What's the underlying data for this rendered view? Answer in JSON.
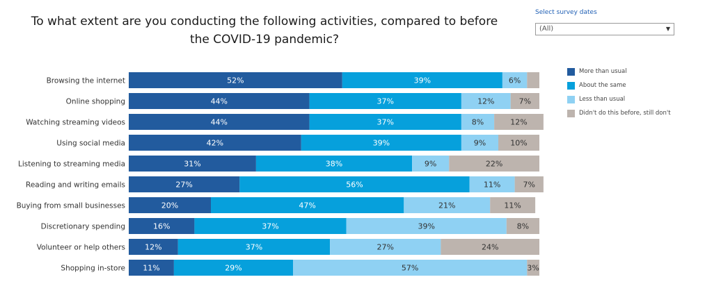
{
  "chart_data": {
    "type": "bar",
    "orientation": "horizontal",
    "stacked": true,
    "title": "To what extent are you conducting the following activities, compared to before the COVID-19 pandemic?",
    "xlim": [
      0,
      100
    ],
    "grid": false,
    "legend_position": "top-right",
    "categories": [
      "Browsing the internet",
      "Online shopping",
      "Watching streaming videos",
      "Using social media",
      "Listening to streaming media",
      "Reading and writing emails",
      "Buying from small businesses",
      "Discretionary spending",
      "Volunteer or help others",
      "Shopping in-store"
    ],
    "series": [
      {
        "name": "More than usual",
        "color": "#225b9e",
        "label_color": "#ffffff",
        "values": [
          52,
          44,
          44,
          42,
          31,
          27,
          20,
          16,
          12,
          11
        ],
        "labels": [
          "52%",
          "44%",
          "44%",
          "42%",
          "31%",
          "27%",
          "20%",
          "16%",
          "12%",
          "11%"
        ]
      },
      {
        "name": "About the same",
        "color": "#06a0dc",
        "label_color": "#ffffff",
        "values": [
          39,
          37,
          37,
          39,
          38,
          56,
          47,
          37,
          37,
          29
        ],
        "labels": [
          "39%",
          "37%",
          "37%",
          "39%",
          "38%",
          "56%",
          "47%",
          "37%",
          "37%",
          "29%"
        ]
      },
      {
        "name": "Less than usual",
        "color": "#8fd1f3",
        "label_color": "#333333",
        "values": [
          6,
          12,
          8,
          9,
          9,
          11,
          21,
          39,
          27,
          57
        ],
        "labels": [
          "6%",
          "12%",
          "8%",
          "9%",
          "9%",
          "11%",
          "21%",
          "39%",
          "27%",
          "57%"
        ]
      },
      {
        "name": "Didn't do this before, still don't",
        "color": "#bdb4ae",
        "label_color": "#333333",
        "values": [
          3,
          7,
          12,
          10,
          22,
          7,
          11,
          8,
          24,
          3
        ],
        "labels": [
          "",
          "7%",
          "12%",
          "10%",
          "22%",
          "7%",
          "11%",
          "8%",
          "24%",
          "3%"
        ]
      }
    ]
  },
  "filter": {
    "label": "Select survey dates",
    "selected": "(All)"
  }
}
